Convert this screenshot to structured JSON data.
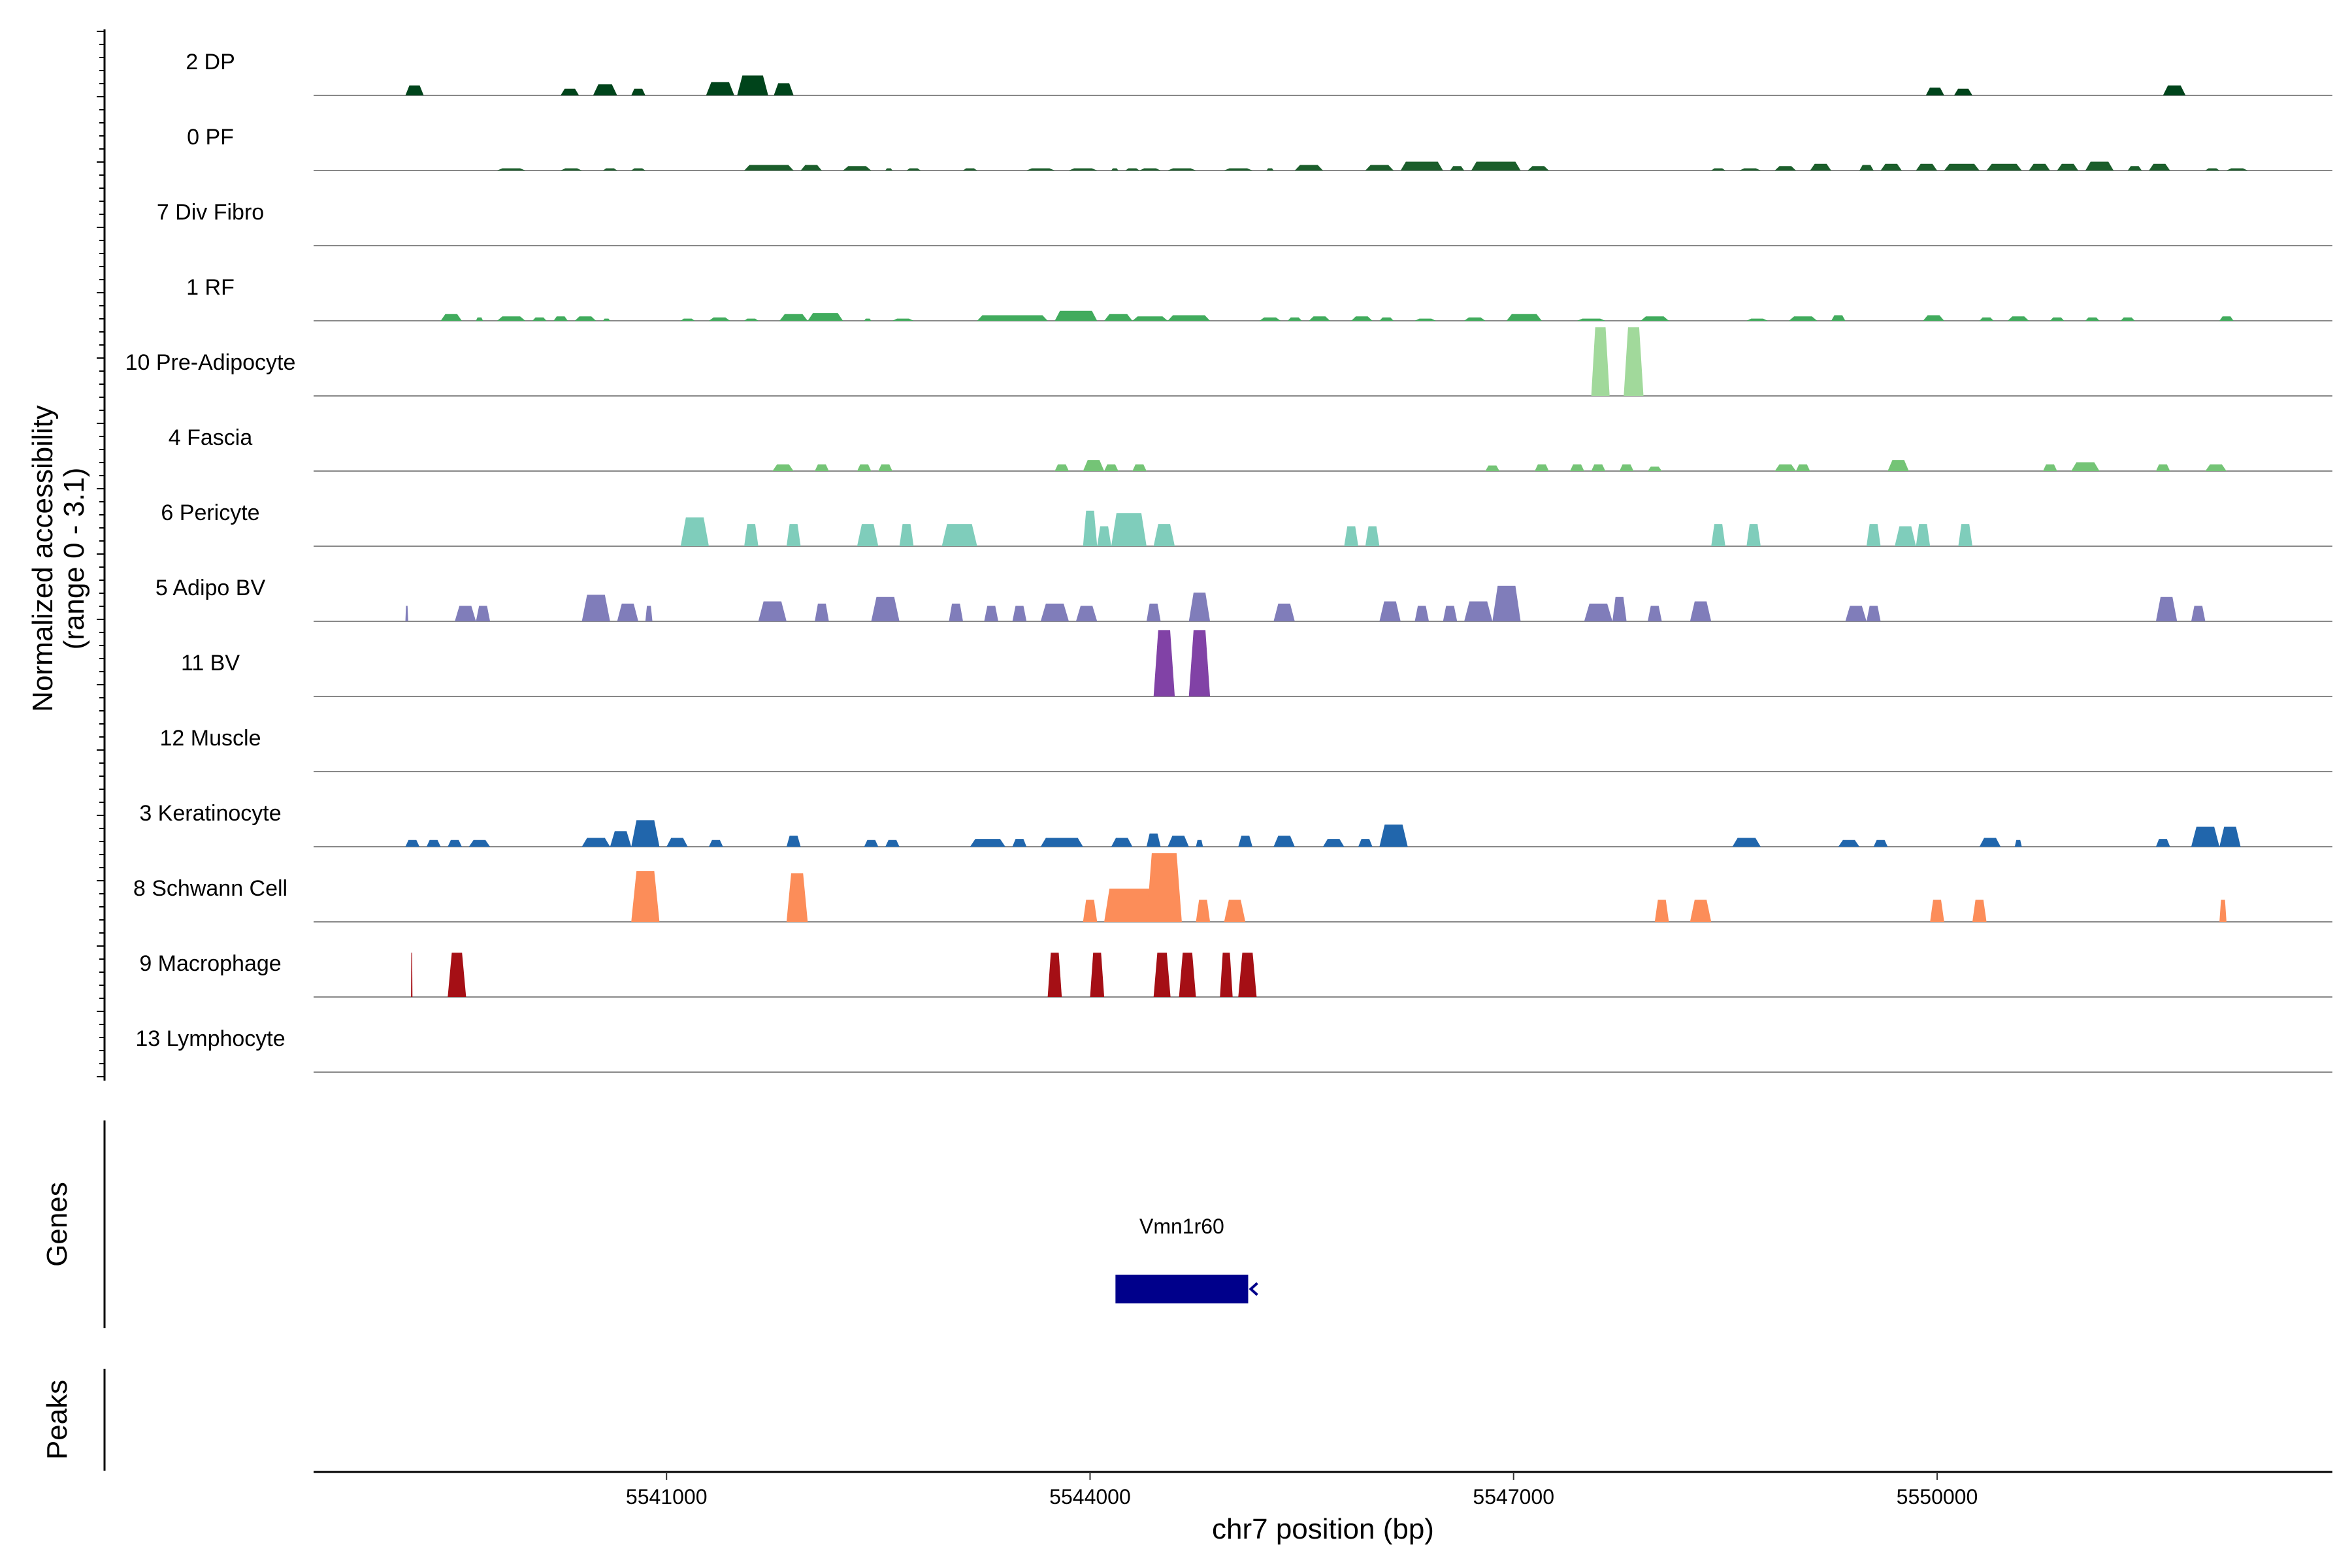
{
  "chart_data": {
    "type": "area",
    "title": "",
    "ylabel_line1": "Normalized accessibility",
    "ylabel_line2": "(range 0 - 3.1)",
    "ylim": [
      0,
      3.1
    ],
    "xlabel": "chr7 position (bp)",
    "xlim": [
      5538500,
      5552800
    ],
    "xticks": [
      5541000,
      5544000,
      5547000,
      5550000
    ],
    "xtick_labels": [
      "5541000",
      "5544000",
      "5547000",
      "5550000"
    ],
    "gene_panel_label": "Genes",
    "peak_panel_label": "Peaks",
    "genes": [
      {
        "name": "Vmn1r60",
        "start": 5544180,
        "end": 5545120,
        "strand": "-",
        "color": "#00008b"
      }
    ],
    "series": [
      {
        "name": "2 DP",
        "color": "#00441b",
        "peaks": [
          [
            5539150,
            5539280,
            0.45
          ],
          [
            5540250,
            5540380,
            0.3
          ],
          [
            5540480,
            5540650,
            0.5
          ],
          [
            5540750,
            5540850,
            0.3
          ],
          [
            5541280,
            5541480,
            0.6
          ],
          [
            5541500,
            5541720,
            0.9
          ],
          [
            5541760,
            5541900,
            0.55
          ],
          [
            5549920,
            5550050,
            0.35
          ],
          [
            5550120,
            5550250,
            0.3
          ],
          [
            5551600,
            5551760,
            0.45
          ]
        ]
      },
      {
        "name": "0 PF",
        "color": "#1b5e2b",
        "peaks": [
          [
            5539800,
            5540000,
            0.1
          ],
          [
            5540250,
            5540400,
            0.1
          ],
          [
            5540550,
            5540650,
            0.1
          ],
          [
            5540750,
            5540850,
            0.1
          ],
          [
            5541550,
            5541900,
            0.25
          ],
          [
            5541950,
            5542100,
            0.25
          ],
          [
            5542250,
            5542450,
            0.2
          ],
          [
            5542550,
            5542600,
            0.1
          ],
          [
            5542700,
            5542800,
            0.1
          ],
          [
            5543100,
            5543200,
            0.1
          ],
          [
            5543550,
            5543750,
            0.1
          ],
          [
            5543850,
            5544050,
            0.1
          ],
          [
            5544150,
            5544200,
            0.1
          ],
          [
            5544250,
            5544350,
            0.1
          ],
          [
            5544350,
            5544500,
            0.1
          ],
          [
            5544550,
            5544750,
            0.1
          ],
          [
            5544950,
            5545150,
            0.1
          ],
          [
            5545250,
            5545300,
            0.1
          ],
          [
            5545450,
            5545650,
            0.25
          ],
          [
            5545950,
            5546150,
            0.25
          ],
          [
            5546200,
            5546500,
            0.4
          ],
          [
            5546550,
            5546650,
            0.2
          ],
          [
            5546700,
            5547050,
            0.4
          ],
          [
            5547100,
            5547250,
            0.2
          ],
          [
            5548400,
            5548500,
            0.1
          ],
          [
            5548600,
            5548750,
            0.1
          ],
          [
            5548850,
            5549000,
            0.2
          ],
          [
            5549100,
            5549250,
            0.3
          ],
          [
            5549450,
            5549550,
            0.25
          ],
          [
            5549600,
            5549750,
            0.3
          ],
          [
            5549850,
            5550000,
            0.3
          ],
          [
            5550050,
            5550300,
            0.3
          ],
          [
            5550350,
            5550600,
            0.3
          ],
          [
            5550650,
            5550800,
            0.3
          ],
          [
            5550850,
            5551000,
            0.3
          ],
          [
            5551050,
            5551250,
            0.4
          ],
          [
            5551350,
            5551450,
            0.2
          ],
          [
            5551500,
            5551650,
            0.3
          ],
          [
            5551900,
            5552000,
            0.1
          ],
          [
            5552050,
            5552200,
            0.1
          ]
        ]
      },
      {
        "name": "7 Div Fibro",
        "color": "#238b45",
        "peaks": []
      },
      {
        "name": "1 RF",
        "color": "#41ab5d",
        "peaks": [
          [
            5539400,
            5539550,
            0.3
          ],
          [
            5539650,
            5539700,
            0.15
          ],
          [
            5539800,
            5540000,
            0.2
          ],
          [
            5540050,
            5540150,
            0.15
          ],
          [
            5540200,
            5540300,
            0.2
          ],
          [
            5540350,
            5540500,
            0.2
          ],
          [
            5540550,
            5540600,
            0.1
          ],
          [
            5541100,
            5541200,
            0.1
          ],
          [
            5541300,
            5541450,
            0.15
          ],
          [
            5541550,
            5541650,
            0.1
          ],
          [
            5541800,
            5542000,
            0.3
          ],
          [
            5542000,
            5542250,
            0.35
          ],
          [
            5542400,
            5542450,
            0.1
          ],
          [
            5542600,
            5542750,
            0.1
          ],
          [
            5543200,
            5543700,
            0.25
          ],
          [
            5543750,
            5544050,
            0.45
          ],
          [
            5544100,
            5544300,
            0.3
          ],
          [
            5544300,
            5544550,
            0.2
          ],
          [
            5544550,
            5544850,
            0.25
          ],
          [
            5545200,
            5545350,
            0.15
          ],
          [
            5545400,
            5545500,
            0.15
          ],
          [
            5545550,
            5545700,
            0.2
          ],
          [
            5545850,
            5546000,
            0.2
          ],
          [
            5546050,
            5546150,
            0.15
          ],
          [
            5546300,
            5546450,
            0.1
          ],
          [
            5546650,
            5546800,
            0.15
          ],
          [
            5546950,
            5547200,
            0.3
          ],
          [
            5547450,
            5547650,
            0.1
          ],
          [
            5547900,
            5548100,
            0.2
          ],
          [
            5548650,
            5548800,
            0.1
          ],
          [
            5548950,
            5549150,
            0.2
          ],
          [
            5549250,
            5549350,
            0.25
          ],
          [
            5549900,
            5550050,
            0.25
          ],
          [
            5550300,
            5550400,
            0.15
          ],
          [
            5550500,
            5550650,
            0.2
          ],
          [
            5550800,
            5550900,
            0.15
          ],
          [
            5551050,
            5551150,
            0.15
          ],
          [
            5551300,
            5551400,
            0.15
          ],
          [
            5552000,
            5552100,
            0.2
          ]
        ]
      },
      {
        "name": "10 Pre-Adipocyte",
        "color": "#a1d99b",
        "peaks": [
          [
            5547550,
            5547680,
            3.1
          ],
          [
            5547780,
            5547920,
            3.1
          ]
        ]
      },
      {
        "name": "4 Fascia",
        "color": "#74c476",
        "peaks": [
          [
            5541750,
            5541900,
            0.3
          ],
          [
            5542050,
            5542150,
            0.3
          ],
          [
            5542350,
            5542450,
            0.3
          ],
          [
            5542500,
            5542600,
            0.3
          ],
          [
            5543750,
            5543850,
            0.3
          ],
          [
            5543950,
            5544100,
            0.5
          ],
          [
            5544100,
            5544200,
            0.3
          ],
          [
            5544300,
            5544400,
            0.3
          ],
          [
            5546800,
            5546900,
            0.25
          ],
          [
            5547150,
            5547250,
            0.3
          ],
          [
            5547400,
            5547500,
            0.3
          ],
          [
            5547550,
            5547650,
            0.3
          ],
          [
            5547750,
            5547850,
            0.3
          ],
          [
            5547950,
            5548050,
            0.2
          ],
          [
            5548850,
            5549000,
            0.3
          ],
          [
            5549000,
            5549100,
            0.3
          ],
          [
            5549650,
            5549800,
            0.5
          ],
          [
            5550750,
            5550850,
            0.3
          ],
          [
            5550950,
            5551150,
            0.4
          ],
          [
            5551550,
            5551650,
            0.3
          ],
          [
            5551900,
            5552050,
            0.3
          ]
        ]
      },
      {
        "name": "6 Pericyte",
        "color": "#7fcdbb",
        "peaks": [
          [
            5541100,
            5541300,
            1.3
          ],
          [
            5541550,
            5541650,
            1.0
          ],
          [
            5541850,
            5541950,
            1.0
          ],
          [
            5542350,
            5542500,
            1.0
          ],
          [
            5542650,
            5542750,
            1.0
          ],
          [
            5542950,
            5543200,
            1.0
          ],
          [
            5543950,
            5544050,
            1.6
          ],
          [
            5544050,
            5544150,
            0.9
          ],
          [
            5544150,
            5544400,
            1.5
          ],
          [
            5544450,
            5544600,
            1.0
          ],
          [
            5545800,
            5545900,
            0.9
          ],
          [
            5545950,
            5546050,
            0.9
          ],
          [
            5548400,
            5548500,
            1.0
          ],
          [
            5548650,
            5548750,
            1.0
          ],
          [
            5549500,
            5549600,
            1.0
          ],
          [
            5549700,
            5549850,
            0.9
          ],
          [
            5549850,
            5549950,
            1.0
          ],
          [
            5550150,
            5550250,
            1.0
          ]
        ]
      },
      {
        "name": "5 Adipo BV",
        "color": "#807dba",
        "peaks": [
          [
            5539150,
            5539170,
            0.7
          ],
          [
            5539500,
            5539650,
            0.7
          ],
          [
            5539650,
            5539750,
            0.7
          ],
          [
            5540400,
            5540600,
            1.2
          ],
          [
            5540650,
            5540800,
            0.8
          ],
          [
            5540850,
            5540900,
            0.7
          ],
          [
            5541650,
            5541850,
            0.9
          ],
          [
            5542050,
            5542150,
            0.8
          ],
          [
            5542450,
            5542650,
            1.1
          ],
          [
            5543000,
            5543100,
            0.8
          ],
          [
            5543250,
            5543350,
            0.7
          ],
          [
            5543450,
            5543550,
            0.7
          ],
          [
            5543650,
            5543850,
            0.8
          ],
          [
            5543900,
            5544050,
            0.7
          ],
          [
            5544400,
            5544500,
            0.8
          ],
          [
            5544700,
            5544850,
            1.3
          ],
          [
            5545300,
            5545450,
            0.8
          ],
          [
            5546050,
            5546200,
            0.9
          ],
          [
            5546300,
            5546400,
            0.7
          ],
          [
            5546500,
            5546600,
            0.7
          ],
          [
            5546650,
            5546850,
            0.9
          ],
          [
            5546850,
            5547050,
            1.6
          ],
          [
            5547500,
            5547700,
            0.8
          ],
          [
            5547700,
            5547800,
            1.1
          ],
          [
            5547950,
            5548050,
            0.7
          ],
          [
            5548250,
            5548400,
            0.9
          ],
          [
            5549350,
            5549500,
            0.7
          ],
          [
            5549500,
            5549600,
            0.7
          ],
          [
            5551550,
            5551700,
            1.1
          ],
          [
            5551800,
            5551900,
            0.7
          ]
        ]
      },
      {
        "name": "11 BV",
        "color": "#8142a6",
        "peaks": [
          [
            5544450,
            5544600,
            3.0
          ],
          [
            5544700,
            5544850,
            3.0
          ]
        ]
      },
      {
        "name": "12 Muscle",
        "color": "#54278f",
        "peaks": []
      },
      {
        "name": "3 Keratinocyte",
        "color": "#2166ac",
        "peaks": [
          [
            5539150,
            5539250,
            0.3
          ],
          [
            5539300,
            5539400,
            0.3
          ],
          [
            5539450,
            5539550,
            0.3
          ],
          [
            5539600,
            5539750,
            0.3
          ],
          [
            5540400,
            5540600,
            0.4
          ],
          [
            5540600,
            5540750,
            0.7
          ],
          [
            5540750,
            5540950,
            1.2
          ],
          [
            5541000,
            5541150,
            0.4
          ],
          [
            5541300,
            5541400,
            0.3
          ],
          [
            5541850,
            5541950,
            0.5
          ],
          [
            5542400,
            5542500,
            0.3
          ],
          [
            5542550,
            5542650,
            0.3
          ],
          [
            5543150,
            5543400,
            0.35
          ],
          [
            5543450,
            5543550,
            0.35
          ],
          [
            5543650,
            5543950,
            0.4
          ],
          [
            5544150,
            5544300,
            0.4
          ],
          [
            5544400,
            5544500,
            0.6
          ],
          [
            5544550,
            5544700,
            0.5
          ],
          [
            5544750,
            5544800,
            0.3
          ],
          [
            5545050,
            5545150,
            0.5
          ],
          [
            5545300,
            5545450,
            0.5
          ],
          [
            5545650,
            5545800,
            0.35
          ],
          [
            5545900,
            5546000,
            0.35
          ],
          [
            5546050,
            5546250,
            1.0
          ],
          [
            5548550,
            5548750,
            0.4
          ],
          [
            5549300,
            5549450,
            0.3
          ],
          [
            5549550,
            5549650,
            0.3
          ],
          [
            5550300,
            5550450,
            0.4
          ],
          [
            5550550,
            5550600,
            0.3
          ],
          [
            5551550,
            5551650,
            0.35
          ],
          [
            5551800,
            5552000,
            0.9
          ],
          [
            5552000,
            5552150,
            0.9
          ]
        ]
      },
      {
        "name": "8 Schwann Cell",
        "color": "#fc8d59",
        "peaks": [
          [
            5540750,
            5540950,
            2.3
          ],
          [
            5541850,
            5542000,
            2.2
          ],
          [
            5543950,
            5544050,
            1.0
          ],
          [
            5544100,
            5544600,
            1.5
          ],
          [
            5544400,
            5544650,
            3.1
          ],
          [
            5544750,
            5544850,
            1.0
          ],
          [
            5544950,
            5545100,
            1.0
          ],
          [
            5548000,
            5548100,
            1.0
          ],
          [
            5548250,
            5548400,
            1.0
          ],
          [
            5549950,
            5550050,
            1.0
          ],
          [
            5550250,
            5550350,
            1.0
          ],
          [
            5552000,
            5552050,
            1.0
          ]
        ]
      },
      {
        "name": "9 Macrophage",
        "color": "#a50f15",
        "peaks": [
          [
            5539190,
            5539200,
            2.0
          ],
          [
            5539450,
            5539580,
            2.0
          ],
          [
            5543700,
            5543800,
            2.0
          ],
          [
            5544000,
            5544100,
            2.0
          ],
          [
            5544450,
            5544570,
            2.0
          ],
          [
            5544630,
            5544750,
            2.0
          ],
          [
            5544920,
            5545010,
            2.0
          ],
          [
            5545050,
            5545180,
            2.0
          ]
        ]
      },
      {
        "name": "13 Lymphocyte",
        "color": "#cb181d",
        "peaks": []
      }
    ]
  }
}
